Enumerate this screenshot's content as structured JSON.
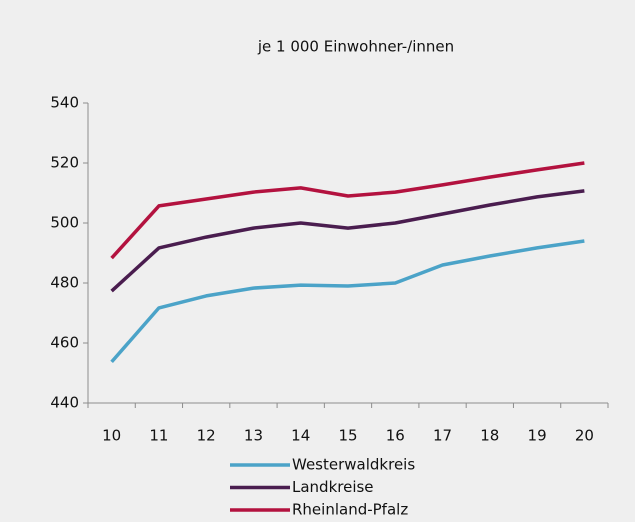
{
  "chart_data": {
    "type": "line",
    "title": "je 1 000 Einwohner-/innen",
    "categories": [
      "10",
      "11",
      "12",
      "13",
      "14",
      "15",
      "16",
      "17",
      "18",
      "19",
      "20"
    ],
    "series": [
      {
        "name": "Westerwaldkreis",
        "color": "#4ba3c8",
        "values": [
          453.7,
          471.7,
          475.7,
          478.3,
          479.3,
          479,
          480,
          486,
          489,
          491.7,
          494
        ]
      },
      {
        "name": "Landkreise",
        "color": "#4a1d4f",
        "values": [
          477.3,
          491.7,
          495.3,
          498.3,
          500,
          498.3,
          500,
          503,
          506,
          508.7,
          510.7
        ]
      },
      {
        "name": "Rheinland-Pfalz",
        "color": "#b3123f",
        "values": [
          488.3,
          505.7,
          508,
          510.3,
          511.7,
          509,
          510.3,
          512.7,
          515.3,
          517.7,
          520
        ]
      }
    ],
    "ylim": [
      440,
      540
    ],
    "yticks": [
      440,
      460,
      480,
      500,
      520,
      540
    ],
    "grid": false,
    "legend": "bottom"
  }
}
